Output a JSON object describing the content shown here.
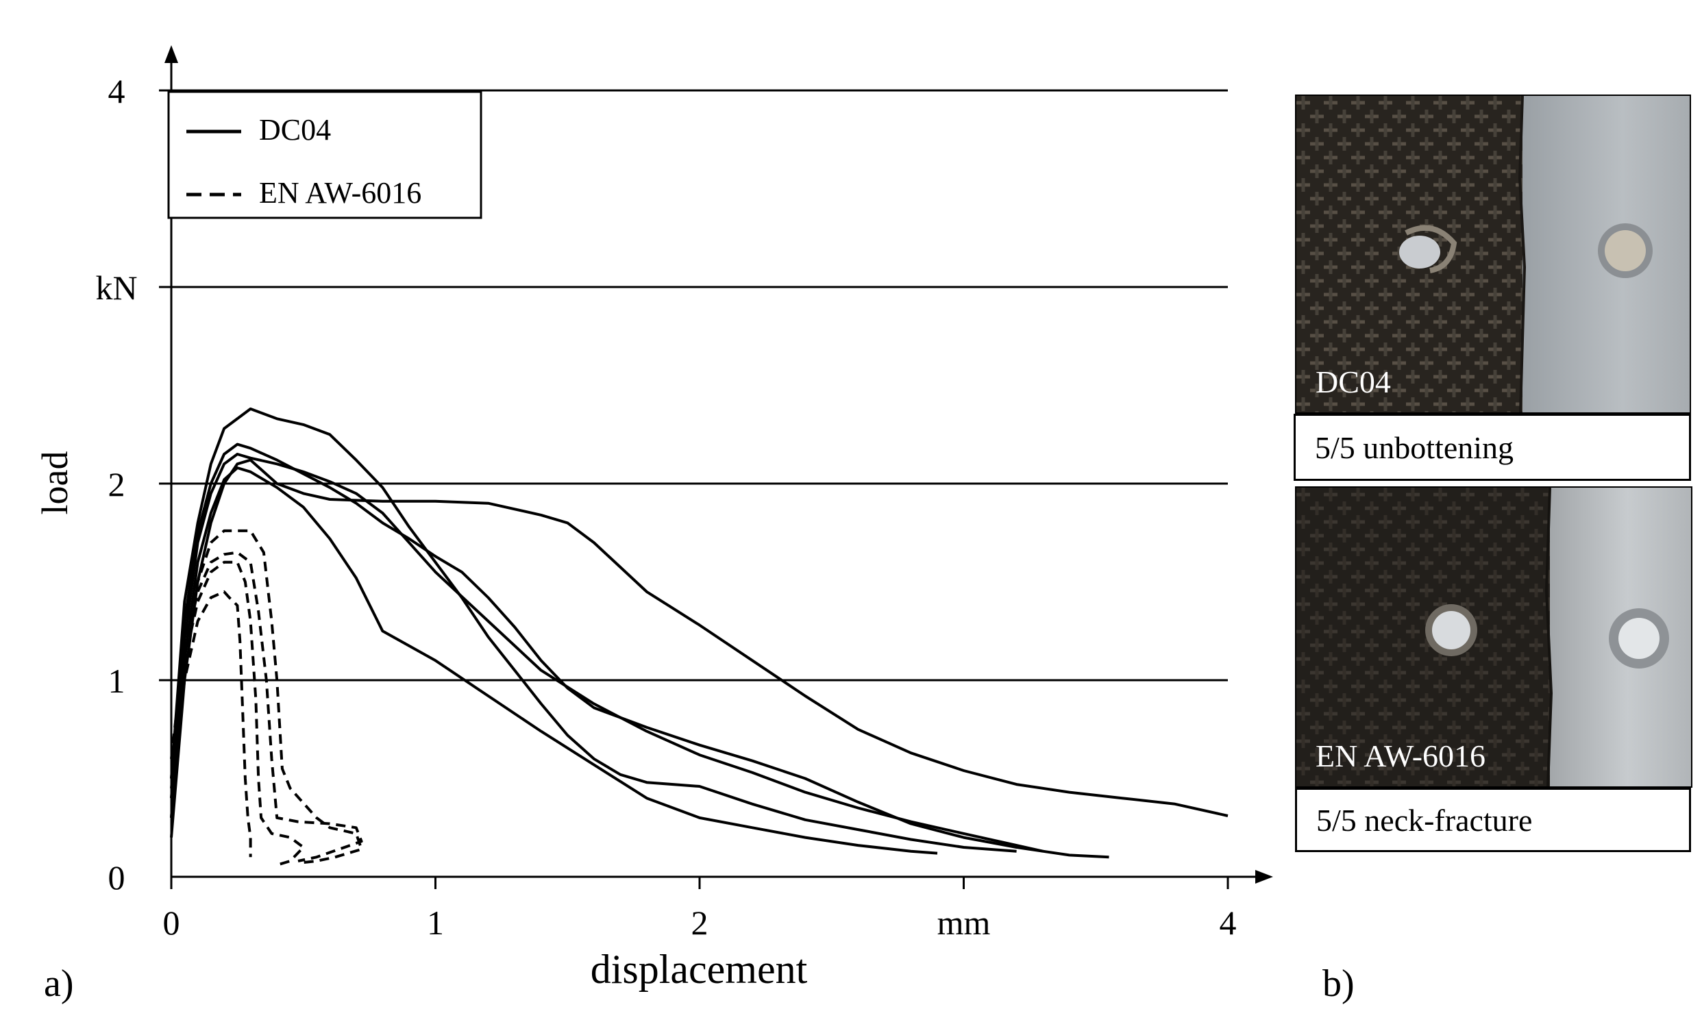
{
  "chart_data": {
    "type": "line",
    "xlabel": "displacement",
    "ylabel": "load",
    "x_unit": "mm",
    "y_unit": "kN",
    "xlim": [
      0,
      4
    ],
    "ylim": [
      0,
      4
    ],
    "x_ticks": [
      {
        "value": 0,
        "label": "0"
      },
      {
        "value": 1,
        "label": "1"
      },
      {
        "value": 2,
        "label": "2"
      },
      {
        "value": 3,
        "label": "mm"
      },
      {
        "value": 4,
        "label": "4"
      }
    ],
    "y_ticks": [
      {
        "value": 0,
        "label": "0"
      },
      {
        "value": 1,
        "label": "1"
      },
      {
        "value": 2,
        "label": "2"
      },
      {
        "value": 3,
        "label": "kN"
      },
      {
        "value": 4,
        "label": "4"
      }
    ],
    "grid": "horizontal",
    "legend_position": "top-left",
    "legend": [
      {
        "label": "DC04",
        "style": "solid"
      },
      {
        "label": "EN AW-6016",
        "style": "dashed"
      }
    ],
    "series": [
      {
        "group": "DC04",
        "style": "solid",
        "points": [
          [
            0,
            0.5
          ],
          [
            0.05,
            1.4
          ],
          [
            0.1,
            1.8
          ],
          [
            0.15,
            2.1
          ],
          [
            0.2,
            2.28
          ],
          [
            0.3,
            2.38
          ],
          [
            0.4,
            2.33
          ],
          [
            0.5,
            2.3
          ],
          [
            0.6,
            2.25
          ],
          [
            0.7,
            2.12
          ],
          [
            0.8,
            1.98
          ],
          [
            0.9,
            1.78
          ],
          [
            1.0,
            1.6
          ],
          [
            1.1,
            1.42
          ],
          [
            1.2,
            1.22
          ],
          [
            1.3,
            1.05
          ],
          [
            1.4,
            0.88
          ],
          [
            1.5,
            0.72
          ],
          [
            1.6,
            0.6
          ],
          [
            1.7,
            0.52
          ],
          [
            1.8,
            0.48
          ],
          [
            2.0,
            0.46
          ],
          [
            2.2,
            0.37
          ],
          [
            2.4,
            0.29
          ],
          [
            2.6,
            0.24
          ],
          [
            2.8,
            0.19
          ],
          [
            3.0,
            0.15
          ],
          [
            3.2,
            0.13
          ]
        ]
      },
      {
        "group": "DC04",
        "style": "solid",
        "points": [
          [
            0,
            0.4
          ],
          [
            0.05,
            1.3
          ],
          [
            0.1,
            1.75
          ],
          [
            0.15,
            2.0
          ],
          [
            0.2,
            2.15
          ],
          [
            0.25,
            2.2
          ],
          [
            0.3,
            2.18
          ],
          [
            0.4,
            2.12
          ],
          [
            0.5,
            2.05
          ],
          [
            0.6,
            1.98
          ],
          [
            0.7,
            1.9
          ],
          [
            0.8,
            1.8
          ],
          [
            0.9,
            1.72
          ],
          [
            1.0,
            1.63
          ],
          [
            1.1,
            1.55
          ],
          [
            1.2,
            1.42
          ],
          [
            1.3,
            1.27
          ],
          [
            1.4,
            1.1
          ],
          [
            1.5,
            0.96
          ],
          [
            1.6,
            0.86
          ],
          [
            1.8,
            0.76
          ],
          [
            2.0,
            0.67
          ],
          [
            2.2,
            0.59
          ],
          [
            2.4,
            0.5
          ],
          [
            2.6,
            0.38
          ],
          [
            2.8,
            0.27
          ],
          [
            3.0,
            0.2
          ],
          [
            3.2,
            0.15
          ],
          [
            3.4,
            0.11
          ],
          [
            3.55,
            0.1
          ]
        ]
      },
      {
        "group": "DC04",
        "style": "solid",
        "points": [
          [
            0,
            0.3
          ],
          [
            0.05,
            1.2
          ],
          [
            0.1,
            1.7
          ],
          [
            0.15,
            1.95
          ],
          [
            0.2,
            2.1
          ],
          [
            0.25,
            2.15
          ],
          [
            0.3,
            2.13
          ],
          [
            0.4,
            2.1
          ],
          [
            0.5,
            2.06
          ],
          [
            0.6,
            2.01
          ],
          [
            0.7,
            1.95
          ],
          [
            0.8,
            1.85
          ],
          [
            0.9,
            1.7
          ],
          [
            1.0,
            1.55
          ],
          [
            1.2,
            1.3
          ],
          [
            1.4,
            1.05
          ],
          [
            1.6,
            0.88
          ],
          [
            1.8,
            0.74
          ],
          [
            2.0,
            0.62
          ],
          [
            2.2,
            0.53
          ],
          [
            2.4,
            0.43
          ],
          [
            2.6,
            0.35
          ],
          [
            2.8,
            0.28
          ],
          [
            3.0,
            0.22
          ],
          [
            3.2,
            0.16
          ],
          [
            3.3,
            0.13
          ]
        ]
      },
      {
        "group": "DC04",
        "style": "solid",
        "points": [
          [
            0,
            0.3
          ],
          [
            0.05,
            1.1
          ],
          [
            0.1,
            1.6
          ],
          [
            0.15,
            1.85
          ],
          [
            0.2,
            2.02
          ],
          [
            0.25,
            2.08
          ],
          [
            0.3,
            2.06
          ],
          [
            0.4,
            1.98
          ],
          [
            0.5,
            1.88
          ],
          [
            0.6,
            1.72
          ],
          [
            0.7,
            1.52
          ],
          [
            0.8,
            1.25
          ],
          [
            1.0,
            1.1
          ],
          [
            1.2,
            0.92
          ],
          [
            1.4,
            0.74
          ],
          [
            1.6,
            0.57
          ],
          [
            1.8,
            0.4
          ],
          [
            2.0,
            0.3
          ],
          [
            2.2,
            0.25
          ],
          [
            2.4,
            0.2
          ],
          [
            2.6,
            0.16
          ],
          [
            2.8,
            0.13
          ],
          [
            2.9,
            0.12
          ]
        ]
      },
      {
        "group": "DC04",
        "style": "solid",
        "points": [
          [
            0,
            0.2
          ],
          [
            0.05,
            1.0
          ],
          [
            0.1,
            1.5
          ],
          [
            0.15,
            1.8
          ],
          [
            0.2,
            2.0
          ],
          [
            0.25,
            2.1
          ],
          [
            0.3,
            2.12
          ],
          [
            0.4,
            2.0
          ],
          [
            0.5,
            1.95
          ],
          [
            0.6,
            1.92
          ],
          [
            0.8,
            1.91
          ],
          [
            1.0,
            1.91
          ],
          [
            1.2,
            1.9
          ],
          [
            1.4,
            1.84
          ],
          [
            1.5,
            1.8
          ],
          [
            1.6,
            1.7
          ],
          [
            1.8,
            1.45
          ],
          [
            2.0,
            1.28
          ],
          [
            2.2,
            1.1
          ],
          [
            2.4,
            0.92
          ],
          [
            2.6,
            0.75
          ],
          [
            2.8,
            0.63
          ],
          [
            3.0,
            0.54
          ],
          [
            3.2,
            0.47
          ],
          [
            3.4,
            0.43
          ],
          [
            3.6,
            0.4
          ],
          [
            3.8,
            0.37
          ],
          [
            4.0,
            0.31
          ]
        ]
      },
      {
        "group": "EN AW-6016",
        "style": "dashed",
        "points": [
          [
            0,
            0.6
          ],
          [
            0.05,
            1.2
          ],
          [
            0.1,
            1.5
          ],
          [
            0.15,
            1.7
          ],
          [
            0.2,
            1.76
          ],
          [
            0.3,
            1.76
          ],
          [
            0.35,
            1.65
          ],
          [
            0.38,
            1.3
          ],
          [
            0.4,
            1.0
          ],
          [
            0.42,
            0.55
          ],
          [
            0.45,
            0.45
          ],
          [
            0.55,
            0.3
          ],
          [
            0.6,
            0.25
          ],
          [
            0.7,
            0.22
          ],
          [
            0.72,
            0.14
          ],
          [
            0.62,
            0.1
          ],
          [
            0.55,
            0.08
          ],
          [
            0.48,
            0.07
          ]
        ]
      },
      {
        "group": "EN AW-6016",
        "style": "dashed",
        "points": [
          [
            0,
            0.5
          ],
          [
            0.05,
            1.15
          ],
          [
            0.1,
            1.45
          ],
          [
            0.15,
            1.6
          ],
          [
            0.2,
            1.64
          ],
          [
            0.25,
            1.65
          ],
          [
            0.3,
            1.6
          ],
          [
            0.33,
            1.35
          ],
          [
            0.36,
            1.0
          ],
          [
            0.38,
            0.6
          ],
          [
            0.4,
            0.3
          ],
          [
            0.48,
            0.28
          ],
          [
            0.6,
            0.27
          ],
          [
            0.7,
            0.25
          ],
          [
            0.72,
            0.18
          ],
          [
            0.55,
            0.1
          ],
          [
            0.48,
            0.08
          ]
        ]
      },
      {
        "group": "EN AW-6016",
        "style": "dashed",
        "points": [
          [
            0,
            0.45
          ],
          [
            0.05,
            1.1
          ],
          [
            0.1,
            1.4
          ],
          [
            0.15,
            1.55
          ],
          [
            0.2,
            1.6
          ],
          [
            0.25,
            1.6
          ],
          [
            0.28,
            1.5
          ],
          [
            0.3,
            1.3
          ],
          [
            0.32,
            0.9
          ],
          [
            0.33,
            0.5
          ],
          [
            0.34,
            0.3
          ],
          [
            0.38,
            0.22
          ],
          [
            0.45,
            0.2
          ],
          [
            0.5,
            0.15
          ],
          [
            0.45,
            0.08
          ],
          [
            0.4,
            0.06
          ]
        ]
      },
      {
        "group": "EN AW-6016",
        "style": "dashed",
        "points": [
          [
            0,
            0.4
          ],
          [
            0.05,
            1.0
          ],
          [
            0.1,
            1.3
          ],
          [
            0.15,
            1.42
          ],
          [
            0.2,
            1.45
          ],
          [
            0.22,
            1.42
          ],
          [
            0.25,
            1.38
          ],
          [
            0.26,
            1.2
          ],
          [
            0.27,
            0.85
          ],
          [
            0.28,
            0.5
          ],
          [
            0.29,
            0.3
          ],
          [
            0.3,
            0.2
          ],
          [
            0.3,
            0.1
          ]
        ]
      }
    ]
  },
  "panel_a_label": "a)",
  "panel_b_label": "b)",
  "photos": [
    {
      "tag": "DC04",
      "caption": "5/5 unbottening"
    },
    {
      "tag": "EN AW-6016",
      "caption": "5/5 neck-fracture"
    }
  ]
}
